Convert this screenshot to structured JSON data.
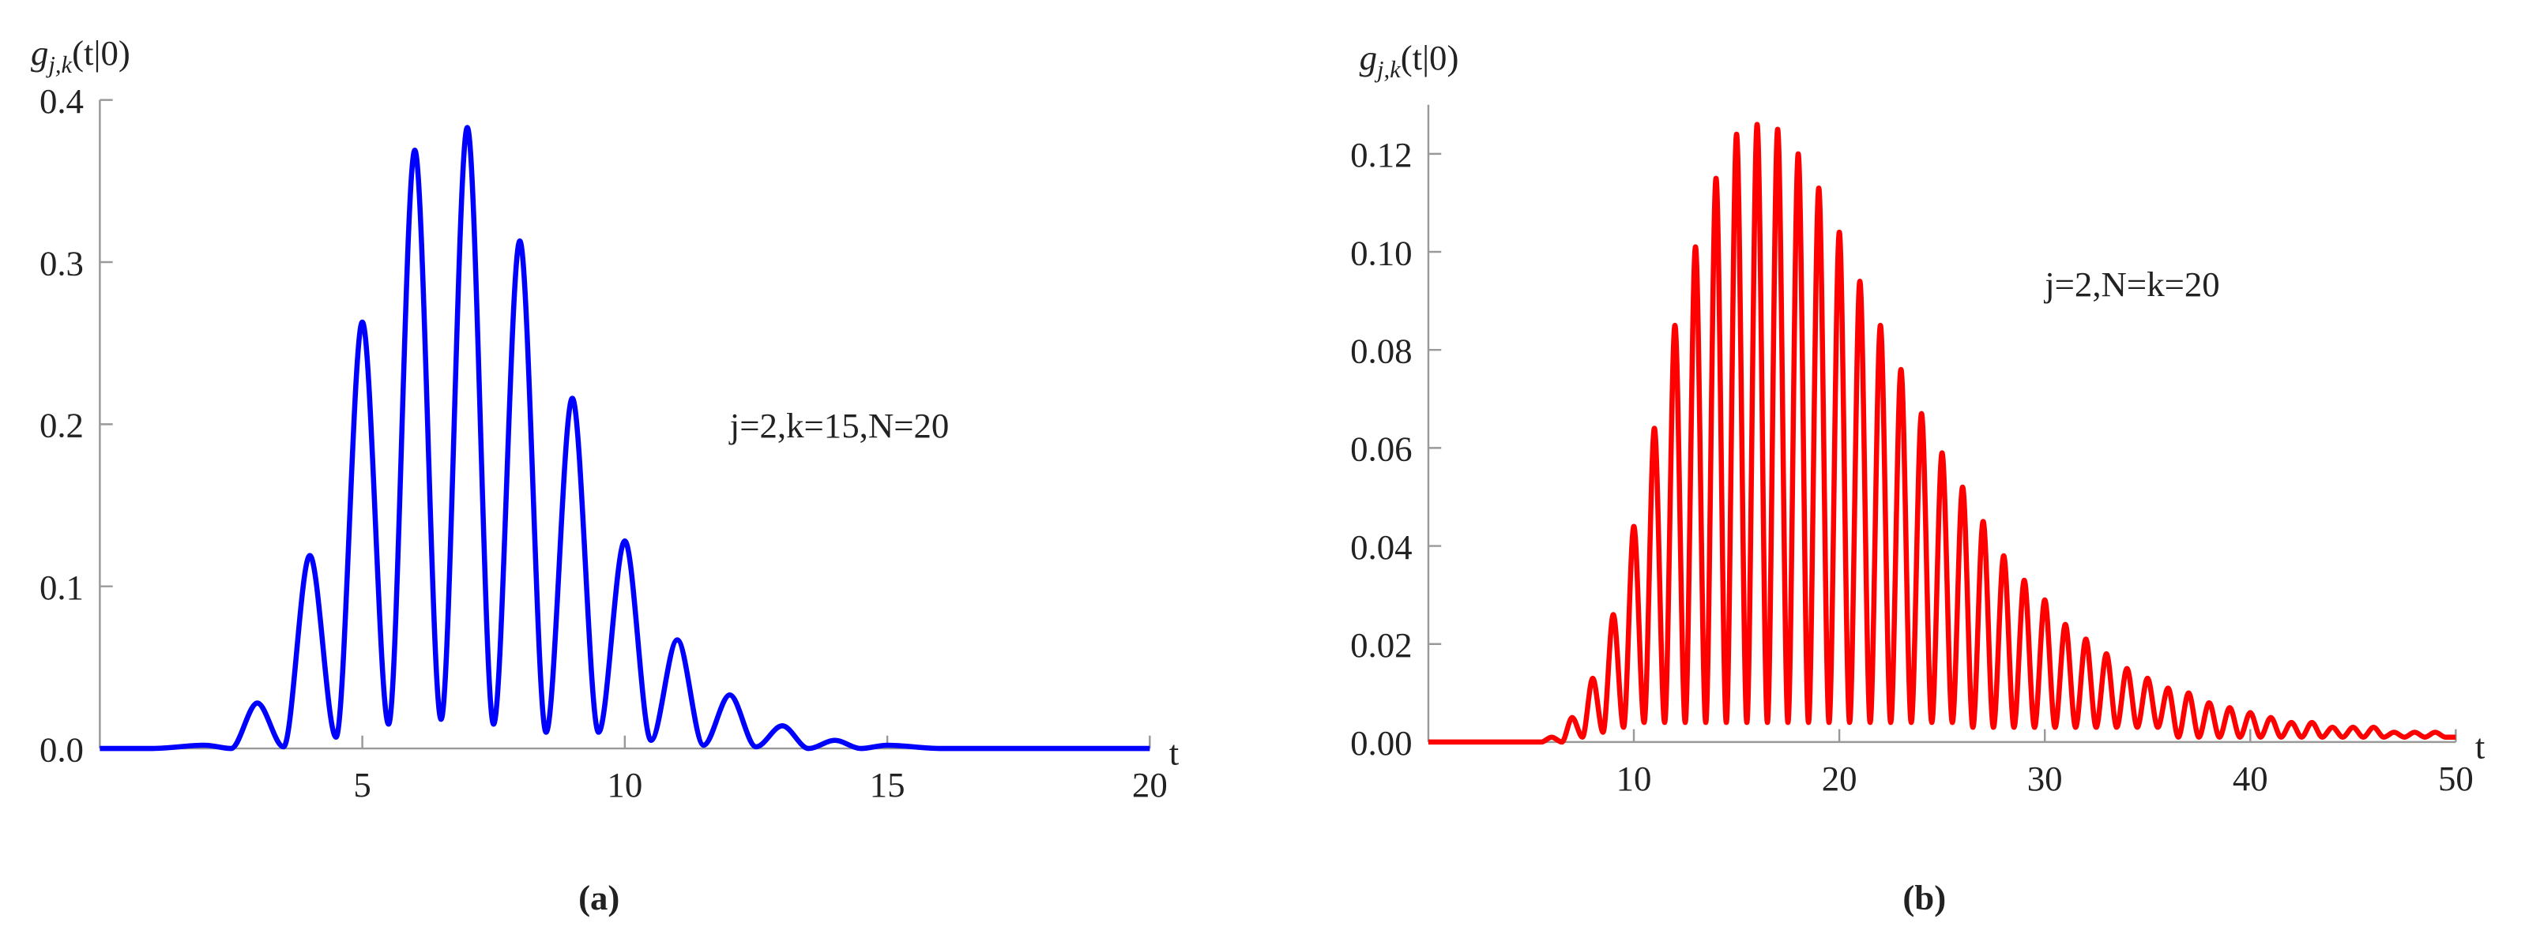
{
  "chart_data": [
    {
      "type": "line",
      "caption": "(a)",
      "annotation": "j=2,k=15,N=20",
      "ylabel": {
        "symbol": "g",
        "sub": "j,k",
        "args": "(t|0)"
      },
      "xlabel": "t",
      "color": "#0000ff",
      "x": [
        0,
        1,
        2,
        2.5,
        3,
        3.5,
        4,
        4.5,
        5,
        5.5,
        6,
        6.5,
        7,
        7.5,
        8,
        8.5,
        9,
        9.5,
        10,
        10.5,
        11,
        11.5,
        12,
        12.5,
        13,
        13.5,
        14,
        14.5,
        15,
        16,
        17,
        18,
        19,
        20
      ],
      "values": [
        0,
        0,
        0.002,
        0,
        0.028,
        0.001,
        0.119,
        0.007,
        0.263,
        0.015,
        0.369,
        0.018,
        0.383,
        0.015,
        0.313,
        0.01,
        0.216,
        0.01,
        0.128,
        0.005,
        0.067,
        0.002,
        0.033,
        0.001,
        0.014,
        0,
        0.005,
        0,
        0.002,
        0,
        0,
        0,
        0,
        0
      ],
      "xlim": [
        0,
        20
      ],
      "ylim": [
        0,
        0.4
      ],
      "xticks": [
        5,
        10,
        15,
        20
      ],
      "yticks": [
        {
          "value": 0,
          "label": "0.0"
        },
        0.1,
        0.2,
        0.3,
        0.4
      ]
    },
    {
      "type": "line",
      "caption": "(b)",
      "annotation": "j=2,N=k=20",
      "ylabel": {
        "symbol": "g",
        "sub": "j,k",
        "args": "(t|0)"
      },
      "xlabel": "t",
      "color": "#ff0000",
      "x": [
        0,
        5,
        5.5,
        6,
        6.5,
        7,
        7.5,
        8,
        8.5,
        9,
        9.5,
        10,
        10.5,
        11,
        11.5,
        12,
        12.5,
        13,
        13.5,
        14,
        14.5,
        15,
        15.5,
        16,
        16.5,
        17,
        17.5,
        18,
        18.5,
        19,
        19.5,
        20,
        20.5,
        21,
        21.5,
        22,
        22.5,
        23,
        23.5,
        24,
        24.5,
        25,
        25.5,
        26,
        26.5,
        27,
        27.5,
        28,
        28.5,
        29,
        29.5,
        30,
        30.5,
        31,
        31.5,
        32,
        32.5,
        33,
        33.5,
        34,
        34.5,
        35,
        35.5,
        36,
        36.5,
        37,
        37.5,
        38,
        38.5,
        39,
        39.5,
        40,
        40.5,
        41,
        41.5,
        42,
        42.5,
        43,
        43.5,
        44,
        44.5,
        45,
        45.5,
        46,
        46.5,
        47,
        47.5,
        48,
        48.5,
        49,
        49.5,
        50
      ],
      "values": [
        0,
        0,
        0,
        0.001,
        0,
        0.005,
        0.001,
        0.013,
        0.002,
        0.026,
        0.003,
        0.044,
        0.004,
        0.064,
        0.004,
        0.085,
        0.004,
        0.101,
        0.004,
        0.115,
        0.004,
        0.124,
        0.004,
        0.126,
        0.004,
        0.125,
        0.004,
        0.12,
        0.004,
        0.113,
        0.004,
        0.104,
        0.004,
        0.094,
        0.004,
        0.085,
        0.004,
        0.076,
        0.004,
        0.067,
        0.004,
        0.059,
        0.004,
        0.052,
        0.003,
        0.045,
        0.003,
        0.038,
        0.003,
        0.033,
        0.003,
        0.029,
        0.003,
        0.024,
        0.003,
        0.021,
        0.003,
        0.018,
        0.003,
        0.015,
        0.003,
        0.013,
        0.003,
        0.011,
        0.001,
        0.01,
        0.001,
        0.008,
        0.001,
        0.007,
        0.001,
        0.006,
        0.001,
        0.005,
        0.001,
        0.004,
        0.001,
        0.004,
        0.001,
        0.003,
        0.001,
        0.003,
        0.001,
        0.003,
        0.001,
        0.002,
        0.001,
        0.002,
        0.001,
        0.002,
        0.001,
        0.001
      ],
      "xlim": [
        0,
        50
      ],
      "ylim": [
        0,
        0.13
      ],
      "xticks": [
        10,
        20,
        30,
        40,
        50
      ],
      "yticks": [
        {
          "value": 0,
          "label": "0.00"
        },
        0.02,
        0.04,
        0.06,
        0.08,
        {
          "value": 0.1,
          "label": "0.10"
        },
        0.12
      ]
    }
  ]
}
